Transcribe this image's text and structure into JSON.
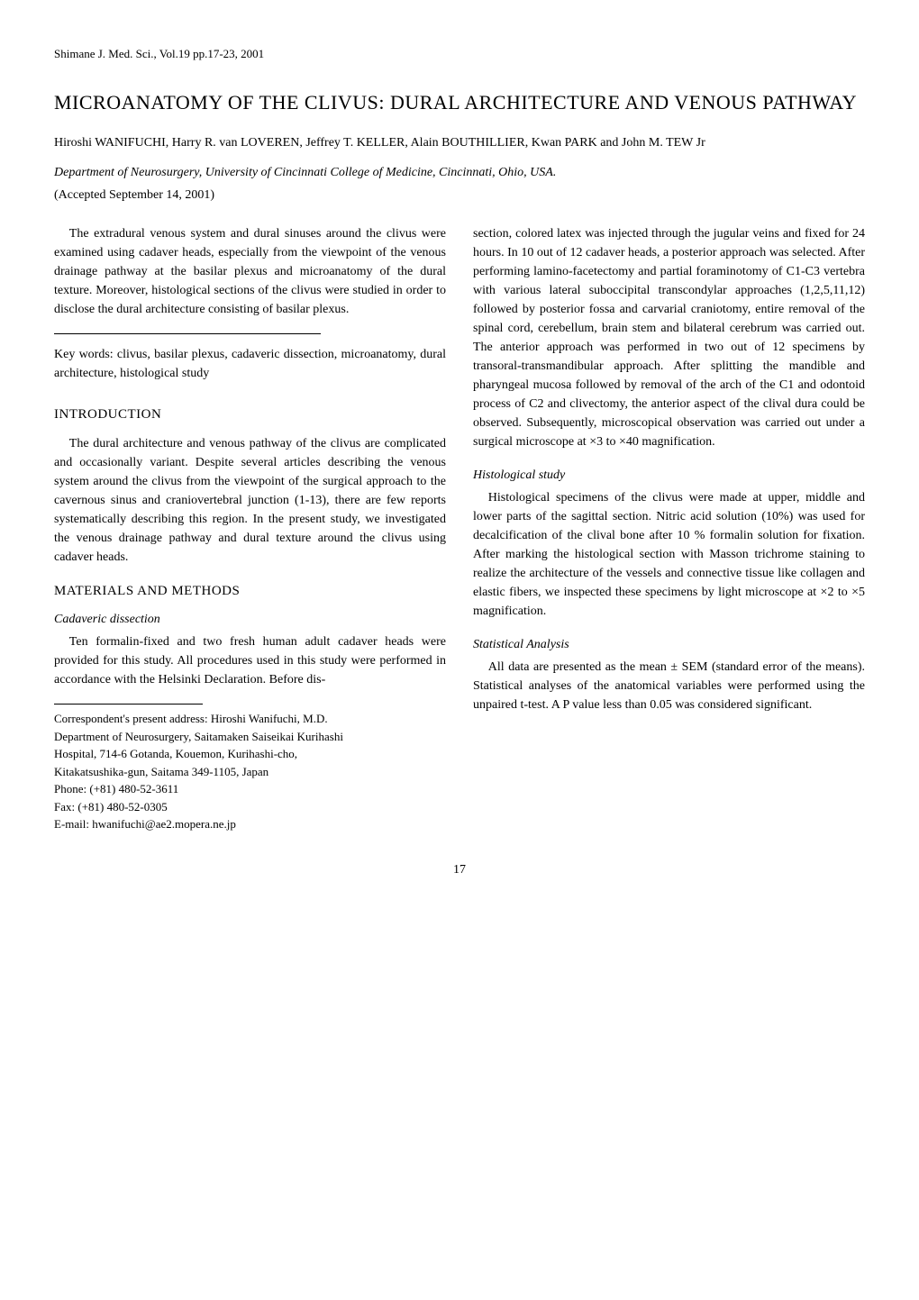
{
  "header_line": "Shimane J. Med. Sci., Vol.19 pp.17-23, 2001",
  "title": "MICROANATOMY OF THE CLIVUS: DURAL ARCHITECTURE AND VENOUS PATHWAY",
  "authors": "Hiroshi WANIFUCHI, Harry R. van LOVEREN, Jeffrey T. KELLER, Alain BOUTHILLIER, Kwan PARK and John M. TEW Jr",
  "affiliation": "Department of Neurosurgery, University of Cincinnati College of Medicine, Cincinnati, Ohio, USA.",
  "accepted": "(Accepted September 14, 2001)",
  "abstract": "The extradural venous system and dural sinuses around the clivus were examined using cadaver heads, especially from the viewpoint of the venous drainage pathway at the basilar plexus and microanatomy of the dural texture. Moreover, histological sections of the clivus were studied in order to disclose the dural architecture consisting of basilar plexus.",
  "keywords": "Key words: clivus, basilar plexus, cadaveric dissection, microanatomy, dural architecture, histological study",
  "sections": {
    "introduction": {
      "heading": "INTRODUCTION",
      "para1": "The dural architecture and venous pathway of the clivus are complicated and occasionally variant. Despite several articles describing the venous system around the clivus from the viewpoint of the surgical approach to the cavernous sinus and craniovertebral junction (1-13), there are few reports systematically describing this region. In the present study, we investigated the venous drainage pathway and dural texture around the clivus using cadaver heads."
    },
    "materials": {
      "heading": "MATERIALS AND METHODS",
      "sub_cadaveric": "Cadaveric dissection",
      "para_cadaveric_left": "Ten formalin-fixed and two fresh human adult cadaver heads were provided for this study. All procedures used in this study were performed in accordance with the Helsinki Declaration. Before dis-",
      "para_cadaveric_right": "section, colored latex was injected through the jugular veins and fixed for 24 hours. In 10 out of 12 cadaver heads, a posterior approach was selected. After performing lamino-facetectomy and partial foraminotomy of C1-C3 vertebra with various lateral suboccipital transcondylar approaches (1,2,5,11,12) followed by posterior fossa and carvarial craniotomy, entire removal of the spinal cord, cerebellum, brain stem and bilateral cerebrum was carried out. The anterior approach was performed in two out of 12 specimens by transoral-transmandibular approach. After splitting the mandible and pharyngeal mucosa followed by removal of the arch of the C1 and odontoid process of C2 and clivectomy, the anterior aspect of the clival dura could be observed. Subsequently, microscopical observation was carried out under a surgical microscope at ×3 to ×40 magnification.",
      "sub_histological": "Histological study",
      "para_histological": "Histological specimens of the clivus were made at upper, middle and lower parts of the sagittal section. Nitric acid solution (10%) was used for decalcification of the clival bone after 10 % formalin solution for fixation. After marking the histological section with Masson trichrome staining to realize the architecture of the vessels and connective tissue like collagen and elastic fibers, we inspected these specimens by light microscope at ×2 to ×5 magnification.",
      "sub_statistical": "Statistical Analysis",
      "para_statistical": "All data are presented as the mean ± SEM (standard error of the means). Statistical analyses of the anatomical variables were performed using the unpaired t-test. A P value less than 0.05 was considered significant."
    }
  },
  "correspondent": {
    "line1": "Correspondent's present address: Hiroshi Wanifuchi, M.D.",
    "line2": "Department of Neurosurgery, Saitamaken Saiseikai Kurihashi",
    "line3": "Hospital, 714-6 Gotanda, Kouemon, Kurihashi-cho,",
    "line4": "Kitakatsushika-gun, Saitama 349-1105, Japan",
    "line5": "Phone: (+81) 480-52-3611",
    "line6": "Fax: (+81) 480-52-0305",
    "line7": "E-mail: hwanifuchi@ae2.mopera.ne.jp"
  },
  "page_number": "17"
}
